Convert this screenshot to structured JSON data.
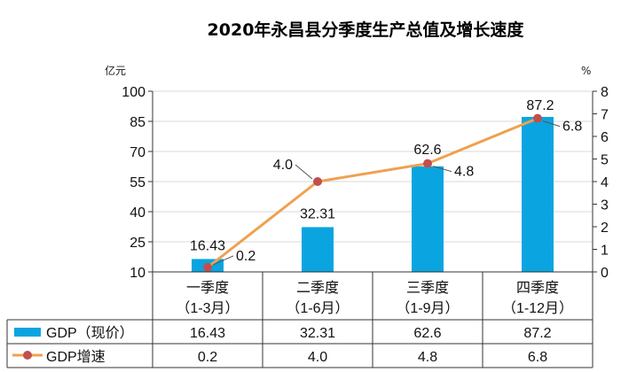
{
  "chart_data": {
    "type": "bar+line",
    "title": "2020年永昌县分季度生产总值及增长速度",
    "categories": [
      "一季度\n（1-3月）",
      "二季度\n（1-6月）",
      "三季度\n（1-9月）",
      "四季度\n（1-12月）"
    ],
    "category_lines": [
      [
        "一季度",
        "（1-3月）"
      ],
      [
        "二季度",
        "（1-6月）"
      ],
      [
        "三季度",
        "（1-9月）"
      ],
      [
        "四季度",
        "（1-12月）"
      ]
    ],
    "series": [
      {
        "name": "GDP（现价）",
        "type": "bar",
        "axis": "left",
        "values": [
          16.43,
          32.31,
          62.6,
          87.2
        ],
        "labels": [
          "16.43",
          "32.31",
          "62.6",
          "87.2"
        ],
        "color": "#0aa5e0"
      },
      {
        "name": "GDP增速",
        "type": "line",
        "axis": "right",
        "values": [
          0.2,
          4.0,
          4.8,
          6.8
        ],
        "labels": [
          "0.2",
          "4.0",
          "4.8",
          "6.8"
        ],
        "color": "#f0a050",
        "marker_color": "#c0504d"
      }
    ],
    "y_left": {
      "label": "亿元",
      "range": [
        10,
        100
      ],
      "ticks": [
        "100",
        "85",
        "70",
        "55",
        "40",
        "25",
        "10"
      ]
    },
    "y_right": {
      "label": "%",
      "range": [
        0,
        8
      ],
      "ticks": [
        "8",
        "7",
        "6",
        "5",
        "4",
        "3",
        "2",
        "1",
        "0"
      ]
    },
    "grid": true,
    "legend": "data-table-left"
  }
}
